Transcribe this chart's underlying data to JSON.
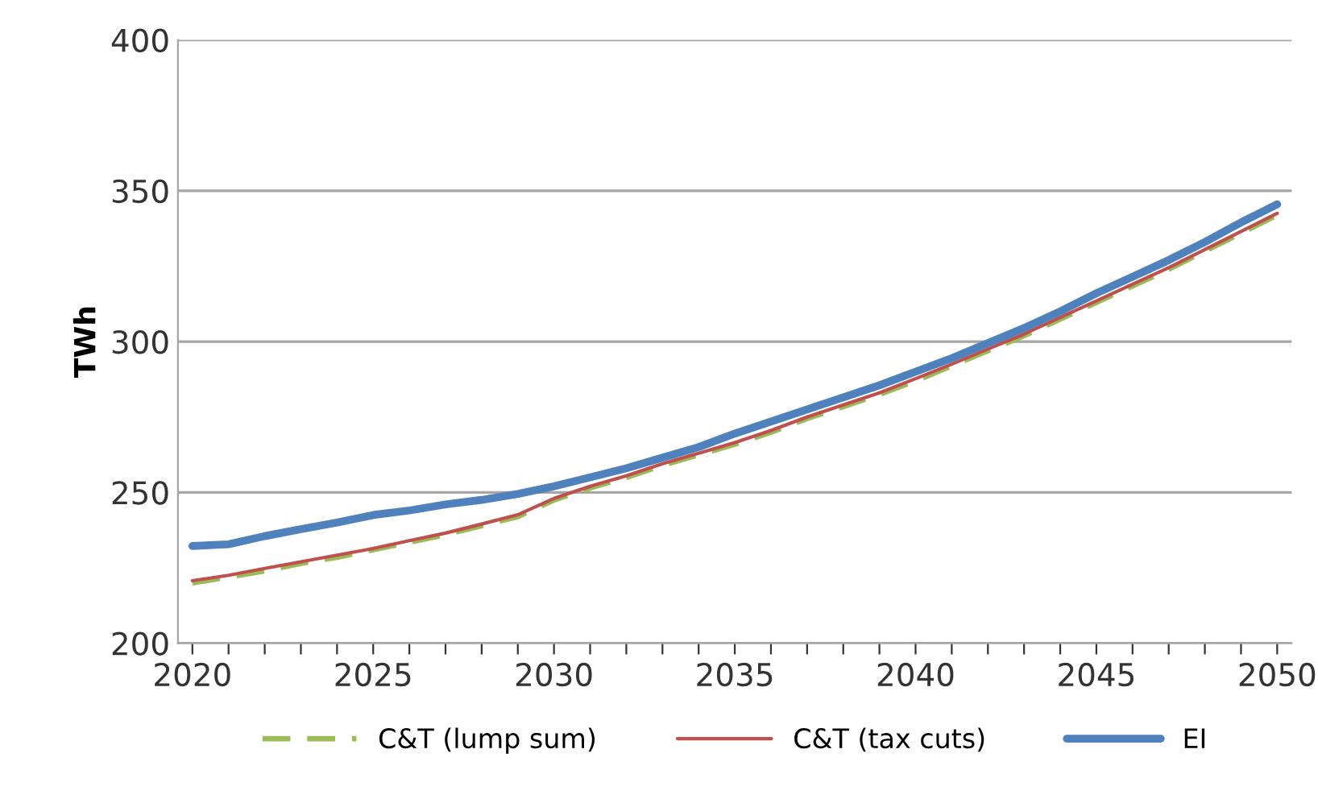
{
  "chart_data": {
    "type": "line",
    "ylabel": "TWh",
    "x": [
      2020,
      2021,
      2022,
      2023,
      2024,
      2025,
      2026,
      2027,
      2028,
      2029,
      2030,
      2031,
      2032,
      2033,
      2034,
      2035,
      2036,
      2037,
      2038,
      2039,
      2040,
      2041,
      2042,
      2043,
      2044,
      2045,
      2046,
      2047,
      2048,
      2049,
      2050
    ],
    "series": [
      {
        "name": "C&T (lump sum)",
        "color": "#9bbb59",
        "line_style": "dashed",
        "values": [
          220,
          222,
          224,
          226.5,
          228.5,
          231,
          233.5,
          236,
          239,
          242,
          247.5,
          251.5,
          255,
          259,
          262.5,
          266,
          270,
          274.5,
          278.5,
          282.5,
          287,
          292,
          297,
          302,
          307.5,
          313,
          318.5,
          324,
          330,
          336,
          342
        ]
      },
      {
        "name": "C&T (tax cuts)",
        "color": "#c0504d",
        "line_style": "solid",
        "values": [
          220.7,
          222.5,
          224.8,
          227,
          229.2,
          231.4,
          234,
          236.5,
          239.5,
          242.6,
          248,
          252,
          255.5,
          259.5,
          263,
          266.5,
          270.5,
          275,
          279,
          283,
          287.7,
          292.5,
          297.5,
          302.5,
          308,
          313.5,
          319,
          324.5,
          330.5,
          336.5,
          342.5
        ]
      },
      {
        "name": "EI",
        "color": "#4f81bd",
        "line_style": "solid",
        "values": [
          232.2,
          232.8,
          235.5,
          237.8,
          240,
          242.5,
          244,
          246,
          247.5,
          249.5,
          252,
          255,
          258,
          261.5,
          265,
          269.5,
          273.5,
          277.5,
          281.5,
          285.5,
          290,
          294.5,
          299.5,
          304.5,
          310,
          316,
          321.5,
          327,
          333,
          339.5,
          345.5
        ]
      }
    ],
    "xlim": [
      2019.6,
      2050.4
    ],
    "xticks": [
      2020,
      {
        "value": 2021,
        "label": null
      },
      {
        "value": 2022,
        "label": null
      },
      {
        "value": 2023,
        "label": null
      },
      {
        "value": 2024,
        "label": null
      },
      2025,
      {
        "value": 2026,
        "label": null
      },
      {
        "value": 2027,
        "label": null
      },
      {
        "value": 2028,
        "label": null
      },
      {
        "value": 2029,
        "label": null
      },
      2030,
      {
        "value": 2031,
        "label": null
      },
      {
        "value": 2032,
        "label": null
      },
      {
        "value": 2033,
        "label": null
      },
      {
        "value": 2034,
        "label": null
      },
      2035,
      {
        "value": 2036,
        "label": null
      },
      {
        "value": 2037,
        "label": null
      },
      {
        "value": 2038,
        "label": null
      },
      {
        "value": 2039,
        "label": null
      },
      2040,
      {
        "value": 2041,
        "label": null
      },
      {
        "value": 2042,
        "label": null
      },
      {
        "value": 2043,
        "label": null
      },
      {
        "value": 2044,
        "label": null
      },
      2045,
      {
        "value": 2046,
        "label": null
      },
      {
        "value": 2047,
        "label": null
      },
      {
        "value": 2048,
        "label": null
      },
      {
        "value": 2049,
        "label": null
      },
      2050
    ],
    "ylim": [
      200,
      400
    ],
    "yticks": [
      200,
      250,
      300,
      350,
      400
    ],
    "grid": "y",
    "legend": "bottom",
    "marker": "none"
  }
}
